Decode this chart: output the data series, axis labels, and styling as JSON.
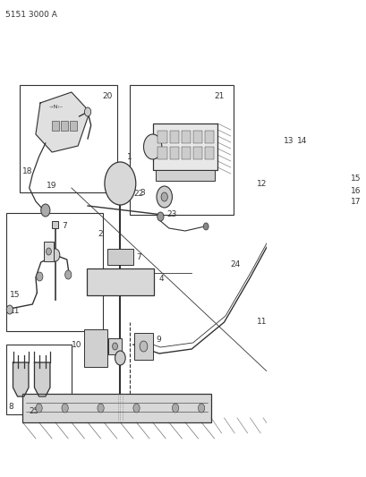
{
  "fig_width": 4.1,
  "fig_height": 5.33,
  "dpi": 100,
  "bg_color": "#ffffff",
  "part_number": "5151 3000 A",
  "lc": "#333333",
  "label_fs": 6.5
}
